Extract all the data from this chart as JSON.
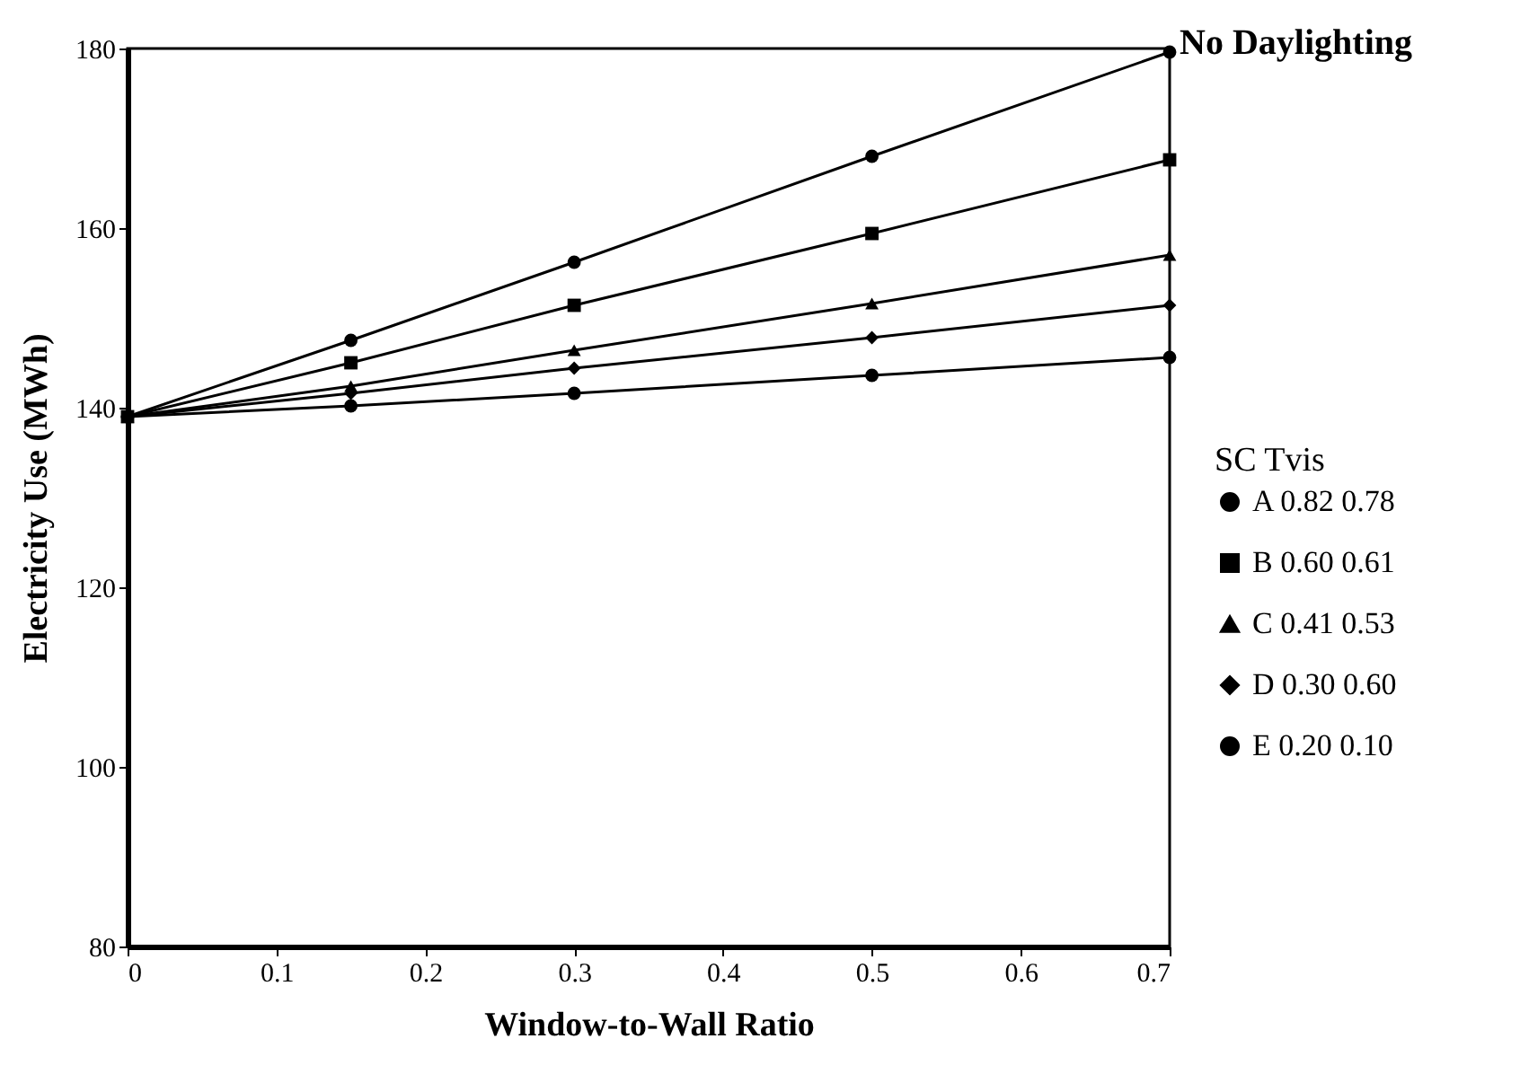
{
  "chart_data": {
    "type": "line",
    "title": "No Daylighting",
    "xlabel": "Window-to-Wall Ratio",
    "ylabel": "Electricity Use (MWh)",
    "legend_title": "SC  Tvis",
    "legend": "right",
    "x": [
      0,
      0.15,
      0.3,
      0.5,
      0.7
    ],
    "series": [
      {
        "name": "A  0.82  0.78",
        "color": "#000000",
        "marker": "circle",
        "values": [
          139,
          147.5,
          156.2,
          168,
          179.6
        ]
      },
      {
        "name": "B  0.60  0.61",
        "color": "#000000",
        "marker": "square",
        "values": [
          139,
          145,
          151.4,
          159.4,
          167.6
        ]
      },
      {
        "name": "C  0.41  0.53",
        "color": "#000000",
        "marker": "triangle",
        "values": [
          139,
          142.4,
          146.4,
          151.6,
          157
        ]
      },
      {
        "name": "D  0.30  0.60",
        "color": "#000000",
        "marker": "diamond",
        "values": [
          139,
          141.6,
          144.4,
          147.8,
          151.4
        ]
      },
      {
        "name": "E  0.20  0.10",
        "color": "#000000",
        "marker": "circle",
        "values": [
          139,
          140.2,
          141.6,
          143.6,
          145.6
        ]
      }
    ],
    "xlim": [
      0,
      0.7
    ],
    "xticks": [
      0,
      0.1,
      0.2,
      0.3,
      0.4,
      0.5,
      0.6,
      0.7
    ],
    "ylim": [
      80,
      180
    ],
    "yticks": [
      80,
      100,
      120,
      140,
      160,
      180
    ]
  }
}
